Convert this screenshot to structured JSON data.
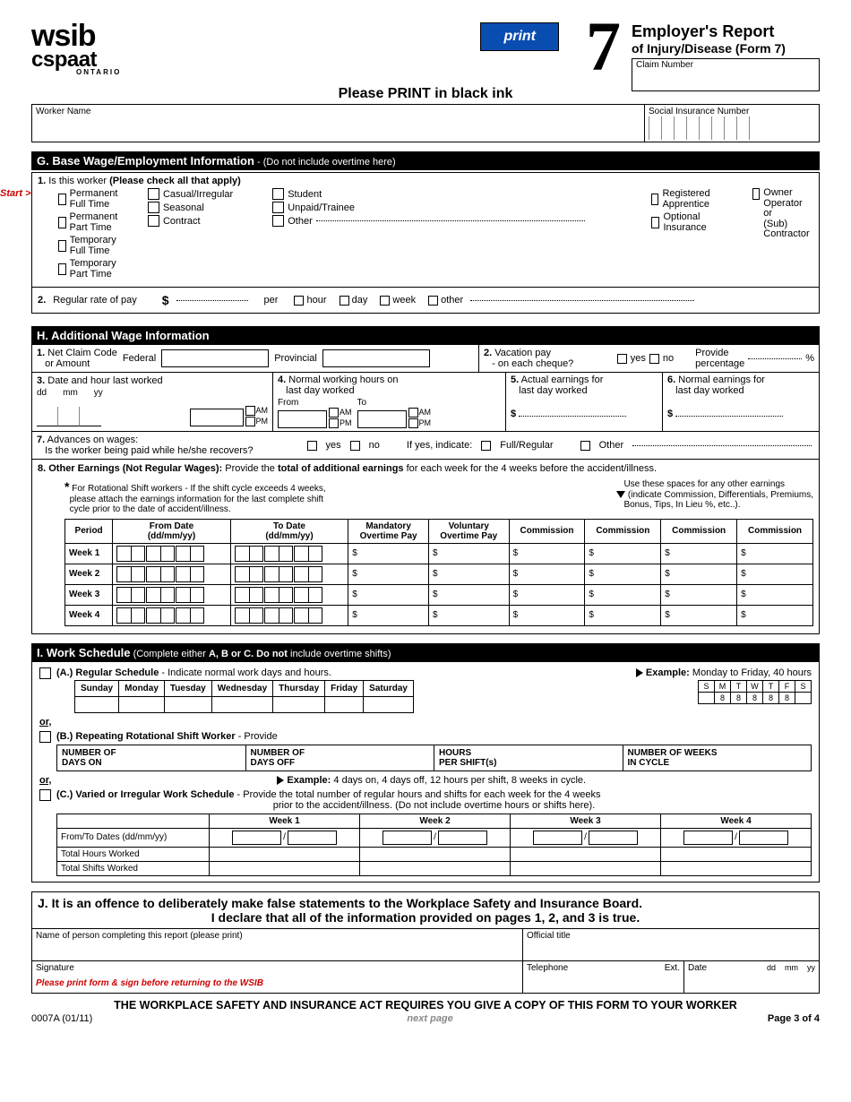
{
  "logo": {
    "line1": "wsib",
    "line2": "cspaat",
    "line3": "ONTARIO"
  },
  "print_label": "print",
  "big_number": "7",
  "title": {
    "main": "Employer's Report",
    "sub": "of Injury/Disease (Form 7)",
    "claim_label": "Claim Number"
  },
  "center_head": "Please PRINT in black ink",
  "worker": {
    "name_label": "Worker Name",
    "sin_label": "Social Insurance Number"
  },
  "G": {
    "head": "G. Base Wage/Employment Information",
    "head_sub": " - (Do not include overtime here)",
    "start": "Start >",
    "q1_num": "1.",
    "q1_text": "Is this worker",
    "q1_bold": "(Please check all that apply)",
    "col1": [
      "Permanent Full Time",
      "Permanent Part Time",
      "Temporary Full Time",
      "Temporary Part Time"
    ],
    "col2": [
      "Casual/Irregular",
      "Seasonal",
      "Contract"
    ],
    "col3": [
      "Student",
      "Unpaid/Trainee",
      "Other"
    ],
    "col4": [
      "Registered Apprentice",
      "Optional Insurance"
    ],
    "col5": [
      "Owner Operator or (Sub) Contractor"
    ],
    "q2_num": "2.",
    "q2_text": "Regular rate of pay",
    "dollar": "$",
    "per": "per",
    "rates": [
      "hour",
      "day",
      "week",
      "other"
    ]
  },
  "H": {
    "head": "H. Additional Wage Information",
    "q1_num": "1.",
    "q1_a": "Net Claim Code",
    "q1_b": "or Amount",
    "fed": "Federal",
    "prov": "Provincial",
    "q2_num": "2.",
    "q2_a": "Vacation pay",
    "q2_b": "- on each cheque?",
    "yes": "yes",
    "no": "no",
    "q2_c": "Provide",
    "q2_d": "percentage",
    "pct": "%",
    "q3_num": "3.",
    "q3": "Date and hour last worked",
    "dd": "dd",
    "mm": "mm",
    "yy": "yy",
    "am": "AM",
    "pm": "PM",
    "q4_num": "4.",
    "q4a": "Normal working hours on",
    "q4b": "last day worked",
    "from": "From",
    "to": "To",
    "q5_num": "5.",
    "q5a": "Actual earnings for",
    "q5b": "last day worked",
    "q6_num": "6.",
    "q6a": "Normal earnings for",
    "q6b": "last day worked",
    "dollar": "$",
    "q7_num": "7.",
    "q7a": "Advances on wages:",
    "q7b": "Is the worker being paid while he/she recovers?",
    "q7_ifyes": "If yes, indicate:",
    "q7_full": "Full/Regular",
    "q7_other": "Other",
    "q8_num": "8.",
    "q8a": "Other Earnings (Not Regular Wages):",
    "q8b": "Provide the ",
    "q8c": "total of additional earnings",
    "q8d": " for each week for the 4 weeks before  the accident/illness.",
    "note1_star": "*",
    "note1a": "For Rotational Shift workers - If the shift cycle exceeds 4 weeks,",
    "note1b": "please attach the earnings information for the last complete shift",
    "note1c": "cycle prior to the date of accident/illness.",
    "note2a": "Use these spaces for any other earnings",
    "note2b": "(indicate Commission, Differentials, Premiums,",
    "note2c": "Bonus, Tips, In Lieu %, etc..).",
    "tbl_heads": [
      "Period",
      "From Date\n(dd/mm/yy)",
      "To Date\n(dd/mm/yy)",
      "Mandatory\nOvertime Pay",
      "Voluntary\nOvertime Pay",
      "Commission",
      "Commission",
      "Commission",
      "Commission"
    ],
    "weeks": [
      "Week 1",
      "Week 2",
      "Week 3",
      "Week 4"
    ]
  },
  "I": {
    "head": "I. Work Schedule",
    "head_sub": " (Complete either ",
    "head_bold": "A, B or C. Do not",
    "head_sub2": " include overtime shifts)",
    "A_label": "(A.)",
    "A_bold": "Regular Schedule",
    "A_rest": " - Indicate normal work days and hours.",
    "days": [
      "Sunday",
      "Monday",
      "Tuesday",
      "Wednesday",
      "Thursday",
      "Friday",
      "Saturday"
    ],
    "ex_label": "Example:",
    "ex_text": " Monday to Friday, 40 hours",
    "grid_days": [
      "S",
      "M",
      "T",
      "W",
      "T",
      "F",
      "S"
    ],
    "grid_hours": [
      "",
      "8",
      "8",
      "8",
      "8",
      "8",
      ""
    ],
    "or": "or,",
    "B_label": "(B.)",
    "B_bold": "Repeating Rotational Shift Worker",
    "B_rest": " - Provide",
    "B_cols": [
      "NUMBER OF\nDAYS ON",
      "NUMBER OF\nDAYS OFF",
      "HOURS\nPER SHIFT(s)",
      "NUMBER OF WEEKS\nIN CYCLE"
    ],
    "B_ex": "Example:",
    "B_ex_text": " 4 days on, 4 days off, 12 hours per shift, 8 weeks in cycle.",
    "C_label": "(C.)",
    "C_bold": "Varied or Irregular Work Schedule",
    "C_rest": " - Provide the total number of regular hours and shifts for each week for the  4 weeks",
    "C_rest2": "prior to the accident/illness.  (Do not include overtime hours or shifts here).",
    "C_weeks": [
      "Week 1",
      "Week 2",
      "Week 3",
      "Week 4"
    ],
    "C_rows": [
      "From/To Dates (dd/mm/yy)",
      "Total Hours Worked",
      "Total Shifts Worked"
    ]
  },
  "J": {
    "line1": "J.  It is an offence to deliberately make false statements to the Workplace Safety and Insurance Board.",
    "line2": "I declare that all of the information provided on pages 1, 2, and 3 is true.",
    "name_label": "Name of person completing this report  (please print)",
    "title_label": "Official title",
    "sig": "Signature",
    "tel": "Telephone",
    "ext": "Ext.",
    "date": "Date",
    "dd": "dd",
    "mm": "mm",
    "yy": "yy",
    "red": "Please print form & sign before returning to the WSIB"
  },
  "footer": {
    "main": "THE WORKPLACE SAFETY AND INSURANCE ACT REQUIRES YOU GIVE A COPY OF THIS FORM TO YOUR WORKER",
    "code": "0007A (01/11)",
    "next": "next page",
    "page": "Page 3 of 4"
  }
}
